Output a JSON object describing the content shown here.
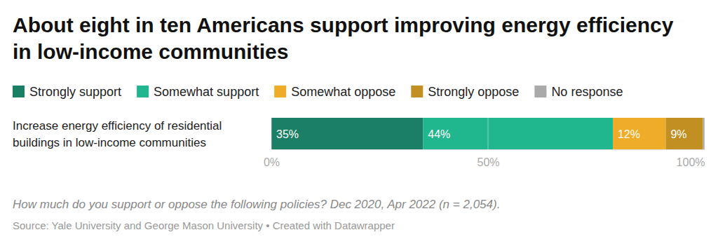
{
  "chart_data": {
    "type": "bar",
    "orientation": "horizontal",
    "stacked": true,
    "data_labels": true,
    "grid": true,
    "legend": "top-left",
    "tick_labels": "x",
    "title": "About eight in ten Americans support improving energy efficiency in low-income communities",
    "categories": [
      "Increase energy efficiency of residential buildings in low-income communities"
    ],
    "series": [
      {
        "name": "Strongly support",
        "color": "#1a7f64",
        "values": [
          35.0
        ],
        "value_labels": [
          "35%"
        ]
      },
      {
        "name": "Somewhat support",
        "color": "#20b68e",
        "values": [
          43.8
        ],
        "value_labels": [
          "44%"
        ]
      },
      {
        "name": "Somewhat oppose",
        "color": "#efac29",
        "values": [
          12.2
        ],
        "value_labels": [
          "12%"
        ]
      },
      {
        "name": "Strongly oppose",
        "color": "#c18f22",
        "values": [
          8.6
        ],
        "value_labels": [
          "9%"
        ]
      },
      {
        "name": "No response",
        "color": "#aaaaaa",
        "values": [
          0.4
        ]
      }
    ],
    "xlim": [
      0,
      100
    ],
    "xticks": [
      {
        "value": 0,
        "label": "0%"
      },
      {
        "value": 50,
        "label": "50%"
      },
      {
        "value": 100,
        "label": "100%"
      }
    ],
    "note": "How much do you support or oppose the following policies? Dec 2020, Apr 2022 (n = 2,054).",
    "source": "Source: Yale University and George Mason University • Created with Datawrapper"
  }
}
